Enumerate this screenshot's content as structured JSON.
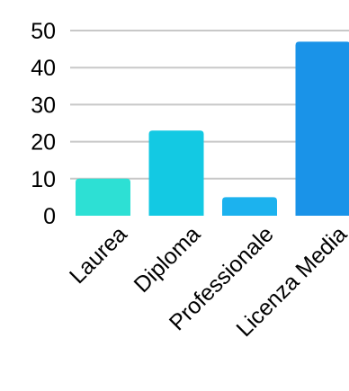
{
  "chart_data": {
    "type": "bar",
    "categories": [
      "Laurea",
      "Diploma",
      "Professionale",
      "Licenza Media"
    ],
    "values": [
      10,
      23,
      5,
      47
    ],
    "colors": [
      "#2de0d4",
      "#13c9e3",
      "#1cb2ee",
      "#1a93e8"
    ],
    "ylim": [
      0,
      50
    ],
    "yticks": [
      0,
      10,
      20,
      30,
      40,
      50
    ],
    "grid": true,
    "title": "",
    "xlabel": "",
    "ylabel": ""
  }
}
